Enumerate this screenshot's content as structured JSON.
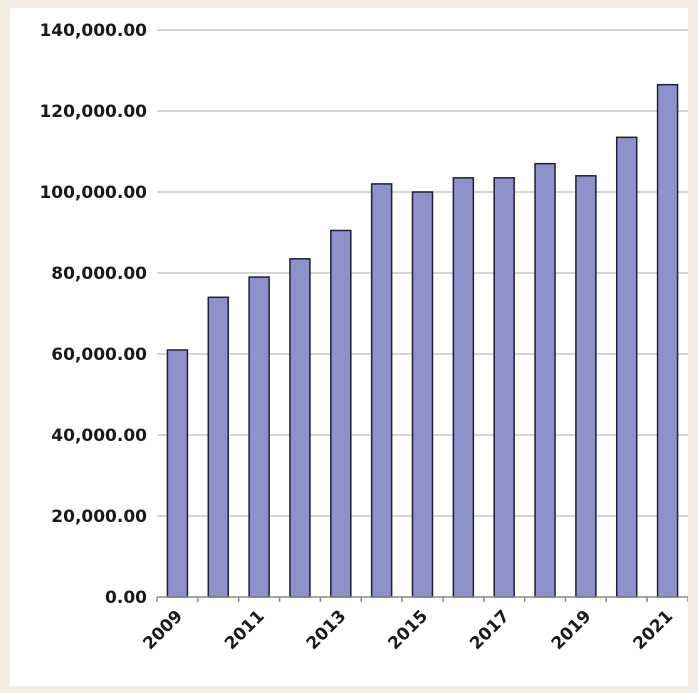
{
  "chart_data": {
    "type": "bar",
    "title": "",
    "xlabel": "",
    "ylabel": "",
    "categories": [
      "2009",
      "2010",
      "2011",
      "2012",
      "2013",
      "2014",
      "2015",
      "2016",
      "2017",
      "2018",
      "2019",
      "2020",
      "2021"
    ],
    "x_tick_labels": [
      "2009",
      "2011",
      "2013",
      "2015",
      "2017",
      "2019",
      "2021"
    ],
    "values": [
      61000,
      74000,
      79000,
      83500,
      90500,
      102000,
      100000,
      103500,
      103500,
      107000,
      104000,
      113500,
      126500
    ],
    "ylim": [
      0,
      140000
    ],
    "y_ticks": [
      0,
      20000,
      40000,
      60000,
      80000,
      100000,
      120000,
      140000
    ],
    "y_tick_labels": [
      "0.00",
      "20,000.00",
      "40,000.00",
      "60,000.00",
      "80,000.00",
      "100,000.00",
      "120,000.00",
      "140,000.00"
    ],
    "grid": true,
    "legend": "none",
    "bar_color": "#8f91cb",
    "bar_edge_color": "#1f1f3a",
    "grid_color": "#c8c8c8"
  }
}
